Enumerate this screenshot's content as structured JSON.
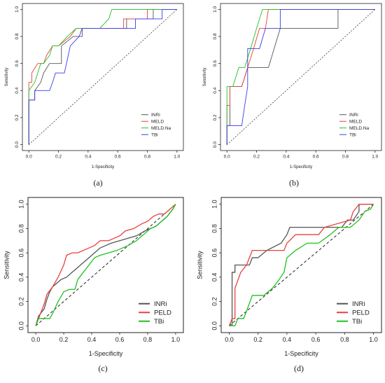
{
  "chart_data": [
    {
      "type": "line",
      "panel_label": "(a)",
      "xlabel": "1-Specificity",
      "ylabel": "Sensitivity",
      "xlim": [
        0,
        1
      ],
      "ylim": [
        0,
        1
      ],
      "xticks": [
        "0.0",
        "0.2",
        "0.4",
        "0.6",
        "0.8",
        "1.0"
      ],
      "yticks": [
        "0.0",
        "0.2",
        "0.4",
        "0.6",
        "0.8",
        "1.0"
      ],
      "reference_line": "diagonal-dashed",
      "legend_position": "bottom-right",
      "series": [
        {
          "name": "INRi",
          "color": "#555555",
          "x": [
            0,
            0,
            0.04,
            0.04,
            0.08,
            0.1,
            0.14,
            0.14,
            0.22,
            0.22,
            0.3,
            0.36,
            0.36,
            0.66,
            0.66,
            0.84,
            0.84,
            1.0
          ],
          "y": [
            0,
            0.33,
            0.33,
            0.4,
            0.46,
            0.53,
            0.6,
            0.6,
            0.6,
            0.73,
            0.8,
            0.8,
            0.86,
            0.86,
            0.93,
            0.93,
            1.0,
            1.0
          ]
        },
        {
          "name": "MELD",
          "color": "#e8403e",
          "x": [
            0,
            0,
            0.02,
            0.02,
            0.06,
            0.1,
            0.12,
            0.16,
            0.2,
            0.28,
            0.32,
            0.4,
            0.64,
            0.64,
            0.8,
            0.8,
            1.0
          ],
          "y": [
            0,
            0.46,
            0.46,
            0.53,
            0.6,
            0.6,
            0.66,
            0.73,
            0.73,
            0.8,
            0.86,
            0.86,
            0.86,
            0.93,
            0.93,
            1.0,
            1.0
          ]
        },
        {
          "name": "MELD.Na",
          "color": "#22c022",
          "x": [
            0,
            0,
            0.04,
            0.08,
            0.1,
            0.14,
            0.16,
            0.2,
            0.26,
            0.32,
            0.4,
            0.48,
            0.54,
            0.56,
            0.88,
            1.0
          ],
          "y": [
            0,
            0.4,
            0.46,
            0.6,
            0.6,
            0.66,
            0.73,
            0.73,
            0.8,
            0.86,
            0.86,
            0.86,
            0.93,
            1.0,
            1.0,
            1.0
          ]
        },
        {
          "name": "TBi",
          "color": "#3b3bea",
          "x": [
            0,
            0,
            0.04,
            0.04,
            0.14,
            0.16,
            0.18,
            0.24,
            0.28,
            0.34,
            0.36,
            0.44,
            0.44,
            0.5,
            0.72,
            0.72,
            0.9,
            0.9,
            1.0
          ],
          "y": [
            0,
            0.33,
            0.33,
            0.4,
            0.4,
            0.46,
            0.53,
            0.53,
            0.73,
            0.8,
            0.86,
            0.86,
            0.86,
            0.86,
            0.86,
            0.93,
            0.93,
            1.0,
            1.0
          ]
        }
      ]
    },
    {
      "type": "line",
      "panel_label": "(b)",
      "xlabel": "1-Specificity",
      "ylabel": "Sensitivity",
      "xlim": [
        0,
        1
      ],
      "ylim": [
        0,
        1
      ],
      "xticks": [
        "0.0",
        "0.2",
        "0.4",
        "0.6",
        "0.8",
        "1.0"
      ],
      "yticks": [
        "0.0",
        "0.2",
        "0.4",
        "0.6",
        "0.8",
        "1.0"
      ],
      "reference_line": "diagonal-dashed",
      "legend_position": "bottom-right",
      "series": [
        {
          "name": "INRi",
          "color": "#555555",
          "x": [
            0,
            0,
            0.02,
            0.02,
            0.1,
            0.14,
            0.24,
            0.28,
            0.36,
            0.75,
            0.75,
            1.0
          ],
          "y": [
            0,
            0.14,
            0.14,
            0.43,
            0.43,
            0.57,
            0.57,
            0.57,
            0.86,
            0.86,
            1.0,
            1.0
          ]
        },
        {
          "name": "MELD",
          "color": "#e8403e",
          "x": [
            0,
            0,
            0.02,
            0.02,
            0.1,
            0.14,
            0.18,
            0.22,
            0.26,
            0.28,
            0.3,
            1.0
          ],
          "y": [
            0,
            0.29,
            0.29,
            0.43,
            0.43,
            0.57,
            0.71,
            0.86,
            0.86,
            1.0,
            1.0,
            1.0
          ]
        },
        {
          "name": "MELD.Na",
          "color": "#22c022",
          "x": [
            0,
            0,
            0.04,
            0.08,
            0.12,
            0.16,
            0.2,
            0.24,
            0.28,
            1.0
          ],
          "y": [
            0,
            0.43,
            0.43,
            0.57,
            0.57,
            0.71,
            0.86,
            1.0,
            1.0,
            1.0
          ]
        },
        {
          "name": "TBi",
          "color": "#3b3bea",
          "x": [
            0,
            0,
            0.08,
            0.1,
            0.12,
            0.14,
            0.14,
            0.22,
            0.26,
            0.3,
            0.36,
            0.36,
            1.0
          ],
          "y": [
            0,
            0.14,
            0.14,
            0.14,
            0.29,
            0.43,
            0.71,
            0.71,
            0.86,
            0.86,
            0.86,
            1.0,
            1.0
          ]
        }
      ]
    },
    {
      "type": "line",
      "panel_label": "(c)",
      "xlabel": "1-Specificity",
      "ylabel": "Sensitivity",
      "xlim": [
        0,
        1
      ],
      "ylim": [
        0,
        1
      ],
      "xticks": [
        "0.0",
        "0.2",
        "0.4",
        "0.6",
        "0.8",
        "1.0"
      ],
      "yticks": [
        "0.0",
        "0.2",
        "0.4",
        "0.6",
        "0.8",
        "1.0"
      ],
      "reference_line": "diagonal-dashed",
      "legend_position": "bottom-right",
      "series": [
        {
          "name": "INRi",
          "color": "#555555",
          "x": [
            0,
            0.02,
            0.06,
            0.08,
            0.1,
            0.12,
            0.14,
            0.18,
            0.22,
            0.26,
            0.3,
            0.34,
            0.38,
            0.42,
            0.46,
            0.5,
            0.54,
            0.6,
            0.66,
            0.72,
            0.78,
            0.82,
            0.86,
            0.9,
            0.94,
            0.98,
            1.0
          ],
          "y": [
            0,
            0.08,
            0.14,
            0.22,
            0.28,
            0.32,
            0.34,
            0.38,
            0.4,
            0.44,
            0.48,
            0.52,
            0.56,
            0.6,
            0.64,
            0.66,
            0.68,
            0.7,
            0.72,
            0.74,
            0.78,
            0.8,
            0.82,
            0.86,
            0.9,
            0.96,
            1.0
          ]
        },
        {
          "name": "PELD",
          "color": "#e8403e",
          "x": [
            0,
            0.02,
            0.04,
            0.06,
            0.08,
            0.12,
            0.16,
            0.2,
            0.22,
            0.26,
            0.3,
            0.34,
            0.38,
            0.42,
            0.46,
            0.52,
            0.56,
            0.6,
            0.64,
            0.7,
            0.76,
            0.8,
            0.84,
            0.88,
            0.92,
            0.96,
            1.0
          ],
          "y": [
            0,
            0.06,
            0.12,
            0.18,
            0.26,
            0.32,
            0.4,
            0.5,
            0.58,
            0.6,
            0.6,
            0.62,
            0.64,
            0.66,
            0.7,
            0.7,
            0.72,
            0.74,
            0.78,
            0.8,
            0.84,
            0.86,
            0.9,
            0.92,
            0.92,
            0.96,
            1.0
          ]
        },
        {
          "name": "TBi",
          "color": "#22c022",
          "x": [
            0,
            0.02,
            0.1,
            0.12,
            0.16,
            0.2,
            0.24,
            0.28,
            0.3,
            0.34,
            0.38,
            0.42,
            0.46,
            0.52,
            0.58,
            0.62,
            0.66,
            0.72,
            0.78,
            0.82,
            0.86,
            0.9,
            0.94,
            0.98,
            1.0
          ],
          "y": [
            0,
            0.06,
            0.06,
            0.1,
            0.2,
            0.28,
            0.3,
            0.3,
            0.38,
            0.44,
            0.5,
            0.56,
            0.58,
            0.6,
            0.62,
            0.64,
            0.66,
            0.7,
            0.76,
            0.8,
            0.82,
            0.86,
            0.9,
            0.96,
            1.0
          ]
        }
      ]
    },
    {
      "type": "line",
      "panel_label": "(d)",
      "xlabel": "1-Specificity",
      "ylabel": "Sensitivity",
      "xlim": [
        0,
        1
      ],
      "ylim": [
        0,
        1
      ],
      "xticks": [
        "0.0",
        "0.2",
        "0.4",
        "0.6",
        "0.8",
        "1.0"
      ],
      "yticks": [
        "0.0",
        "0.2",
        "0.4",
        "0.6",
        "0.8",
        "1.0"
      ],
      "reference_line": "diagonal-dashed",
      "legend_position": "bottom-right",
      "series": [
        {
          "name": "INRi",
          "color": "#555555",
          "x": [
            0,
            0.02,
            0.02,
            0.04,
            0.04,
            0.14,
            0.16,
            0.2,
            0.26,
            0.36,
            0.4,
            0.42,
            0.62,
            0.66,
            0.78,
            0.82,
            0.86,
            0.9,
            0.9,
            1.0
          ],
          "y": [
            0,
            0.0,
            0.44,
            0.44,
            0.5,
            0.5,
            0.56,
            0.56,
            0.62,
            0.68,
            0.75,
            0.81,
            0.81,
            0.81,
            0.81,
            0.87,
            0.87,
            0.94,
            1.0,
            1.0
          ]
        },
        {
          "name": "PELD",
          "color": "#e8403e",
          "x": [
            0,
            0.02,
            0.04,
            0.04,
            0.08,
            0.12,
            0.16,
            0.2,
            0.3,
            0.38,
            0.4,
            0.46,
            0.62,
            0.66,
            0.84,
            0.86,
            0.9,
            1.0
          ],
          "y": [
            0,
            0.06,
            0.06,
            0.31,
            0.44,
            0.5,
            0.62,
            0.62,
            0.62,
            0.62,
            0.68,
            0.75,
            0.75,
            0.81,
            0.87,
            0.94,
            1.0,
            1.0
          ]
        },
        {
          "name": "TBi",
          "color": "#22c022",
          "x": [
            0,
            0.02,
            0.04,
            0.06,
            0.1,
            0.12,
            0.16,
            0.22,
            0.24,
            0.3,
            0.34,
            0.38,
            0.4,
            0.46,
            0.54,
            0.62,
            0.7,
            0.76,
            0.84,
            0.9,
            0.94,
            0.98,
            1.0
          ],
          "y": [
            0,
            0.0,
            0.0,
            0.06,
            0.06,
            0.12,
            0.25,
            0.25,
            0.25,
            0.31,
            0.37,
            0.44,
            0.56,
            0.62,
            0.68,
            0.68,
            0.75,
            0.81,
            0.81,
            0.87,
            0.94,
            0.96,
            1.0
          ]
        }
      ]
    }
  ]
}
